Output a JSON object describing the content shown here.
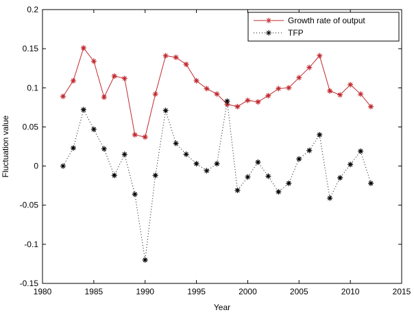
{
  "chart_data": {
    "type": "line",
    "xlabel": "Year",
    "ylabel": "Fluctuation value",
    "x": [
      1982,
      1983,
      1984,
      1985,
      1986,
      1987,
      1988,
      1989,
      1990,
      1991,
      1992,
      1993,
      1994,
      1995,
      1996,
      1997,
      1998,
      1999,
      2000,
      2001,
      2002,
      2003,
      2004,
      2005,
      2006,
      2007,
      2008,
      2009,
      2010,
      2011,
      2012
    ],
    "series": [
      {
        "name": "Growth rate of output",
        "color": "#c0282d",
        "linestyle": "solid",
        "values": [
          0.089,
          0.109,
          0.151,
          0.134,
          0.088,
          0.115,
          0.112,
          0.04,
          0.037,
          0.092,
          0.141,
          0.139,
          0.13,
          0.109,
          0.099,
          0.092,
          0.079,
          0.076,
          0.084,
          0.082,
          0.09,
          0.099,
          0.1,
          0.113,
          0.126,
          0.141,
          0.096,
          0.091,
          0.104,
          0.092,
          0.076
        ]
      },
      {
        "name": "TFP",
        "color": "#000000",
        "linestyle": "dotted",
        "values": [
          0.0,
          0.023,
          0.072,
          0.047,
          0.022,
          -0.012,
          0.015,
          -0.036,
          -0.12,
          -0.012,
          0.071,
          0.029,
          0.015,
          0.003,
          -0.006,
          0.003,
          0.083,
          -0.031,
          -0.014,
          0.005,
          -0.013,
          -0.033,
          -0.022,
          0.009,
          0.02,
          0.04,
          -0.041,
          -0.015,
          0.002,
          0.019,
          -0.022
        ]
      }
    ],
    "xlim": [
      1980,
      2015
    ],
    "xticks": [
      1980,
      1985,
      1990,
      1995,
      2000,
      2005,
      2010,
      2015
    ],
    "ylim": [
      -0.15,
      0.2
    ],
    "yticks": [
      -0.15,
      -0.1,
      -0.05,
      0,
      0.05,
      0.1,
      0.15,
      0.2
    ],
    "grid": false,
    "legend": "upper right"
  }
}
